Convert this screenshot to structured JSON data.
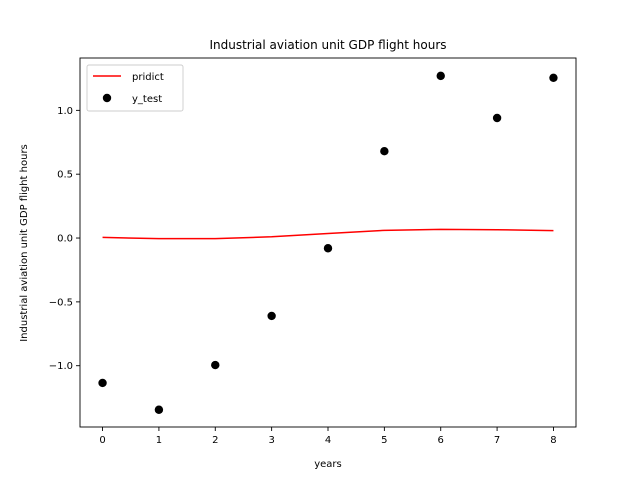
{
  "chart_data": {
    "type": "line",
    "title": "Industrial aviation unit GDP flight hours",
    "xlabel": "years",
    "ylabel": "Industrial aviation unit GDP flight hours",
    "x": [
      0,
      1,
      2,
      3,
      4,
      5,
      6,
      7,
      8
    ],
    "xlim": [
      -0.4,
      8.4
    ],
    "ylim": [
      -1.48,
      1.41
    ],
    "xticks": [
      0,
      1,
      2,
      3,
      4,
      5,
      6,
      7,
      8
    ],
    "xtick_labels": [
      "0",
      "1",
      "2",
      "3",
      "4",
      "5",
      "6",
      "7",
      "8"
    ],
    "yticks": [
      -1.0,
      -0.5,
      0.0,
      0.5,
      1.0
    ],
    "ytick_labels": [
      "−1.0",
      "−0.5",
      "0.0",
      "0.5",
      "1.0"
    ],
    "grid": false,
    "legend_position": "top-left",
    "series": [
      {
        "name": "pridict",
        "kind": "line",
        "color": "#ff0000",
        "values": [
          0.005,
          -0.005,
          -0.005,
          0.01,
          0.035,
          0.06,
          0.068,
          0.065,
          0.058
        ]
      },
      {
        "name": "y_test",
        "kind": "scatter",
        "color": "#000000",
        "values": [
          -1.135,
          -1.345,
          -0.995,
          -0.61,
          -0.08,
          0.68,
          1.27,
          0.94,
          1.255
        ]
      }
    ]
  }
}
